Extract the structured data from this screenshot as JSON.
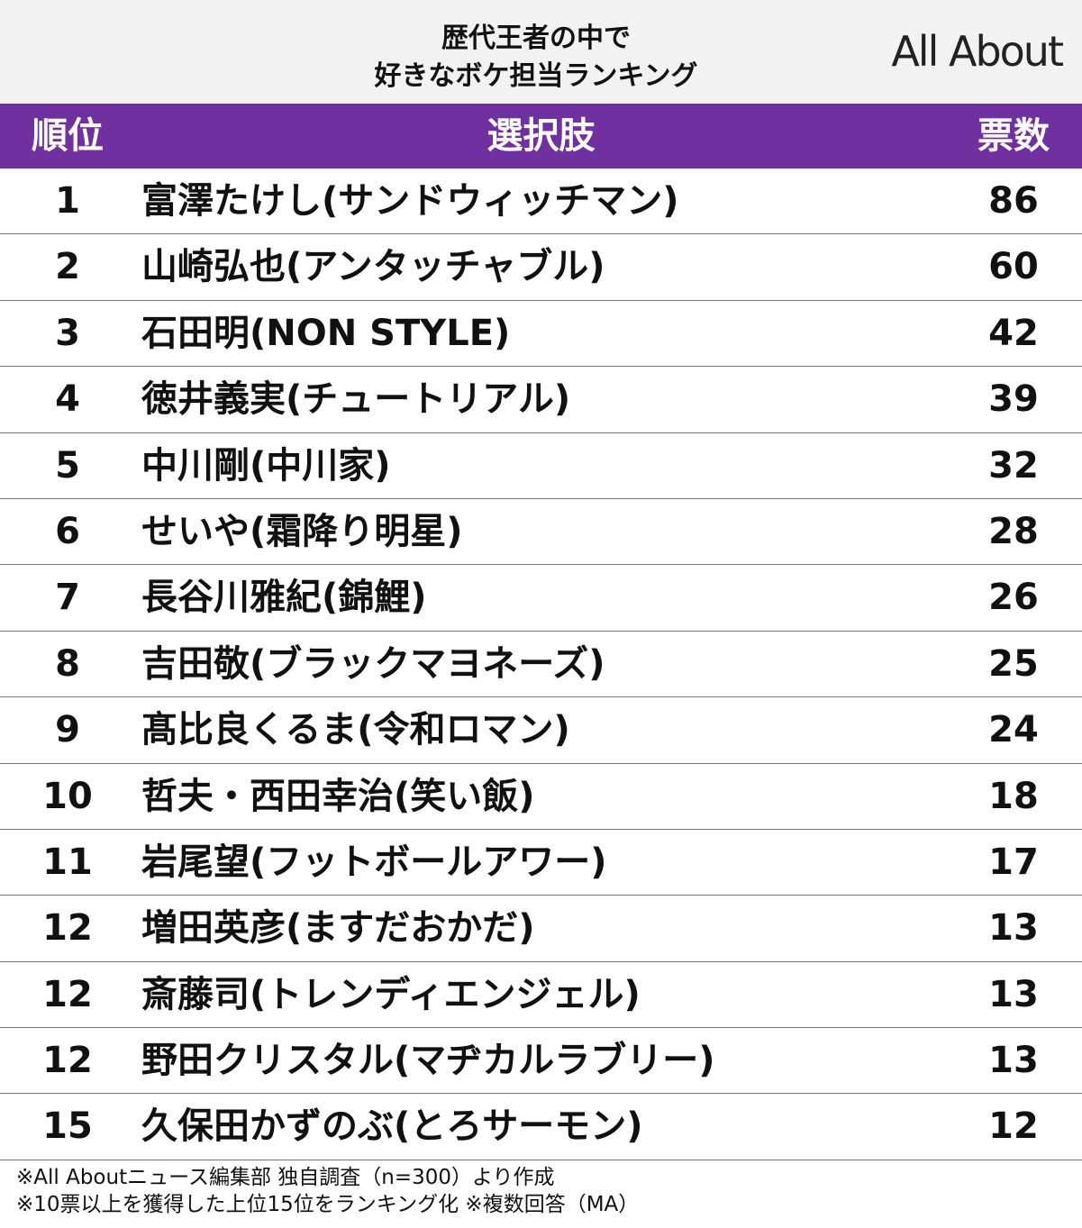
{
  "header": {
    "title_lines": [
      "歴代王者の中で",
      "好きなボケ担当ランキング"
    ],
    "logo": "All About"
  },
  "table": {
    "columns": [
      "順位",
      "選択肢",
      "票数"
    ],
    "rows": [
      [
        "1",
        "富澤たけし(サンドウィッチマン)",
        "86"
      ],
      [
        "2",
        "山崎弘也(アンタッチャブル)",
        "60"
      ],
      [
        "3",
        "石田明(NON STYLE)",
        "42"
      ],
      [
        "4",
        "徳井義実(チュートリアル)",
        "39"
      ],
      [
        "5",
        "中川剛(中川家)",
        "32"
      ],
      [
        "6",
        "せいや(霜降り明星)",
        "28"
      ],
      [
        "7",
        "長谷川雅紀(錦鯉)",
        "26"
      ],
      [
        "8",
        "吉田敬(ブラックマヨネーズ)",
        "25"
      ],
      [
        "9",
        "髙比良くるま(令和ロマン)",
        "24"
      ],
      [
        "10",
        "哲夫・西田幸治(笑い飯)",
        "18"
      ],
      [
        "11",
        "岩尾望(フットボールアワー)",
        "17"
      ],
      [
        "12",
        "増田英彦(ますだおかだ)",
        "13"
      ],
      [
        "12",
        "斎藤司(トレンディエンジェル)",
        "13"
      ],
      [
        "12",
        "野田クリスタル(マヂカルラブリー)",
        "13"
      ],
      [
        "15",
        "久保田かずのぶ(とろサーモン)",
        "12"
      ]
    ]
  },
  "footer": {
    "notes": [
      "※All Aboutニュース編集部 独自調査（n=300）より作成",
      "※10票以上を獲得した上位15位をランキング化 ※複数回答（MA）"
    ]
  }
}
